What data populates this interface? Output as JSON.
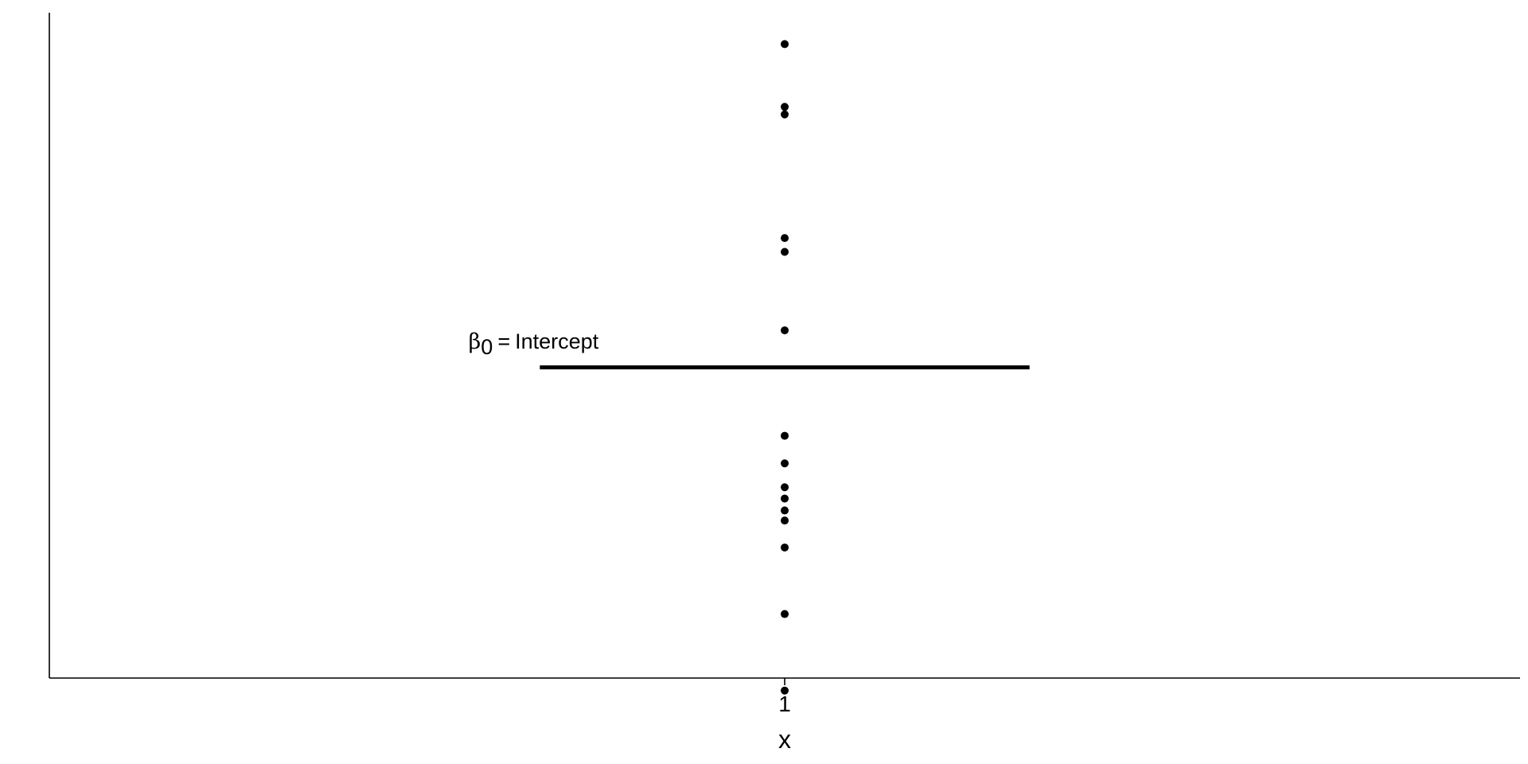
{
  "chart_data": {
    "type": "scatter",
    "title": "",
    "xlabel": "x",
    "ylabel": "",
    "x_ticks": [
      "1"
    ],
    "x_range": [
      0,
      2
    ],
    "y_range": [
      -4.7,
      5.9
    ],
    "grid": false,
    "legend": "none",
    "points": [
      {
        "x": 1,
        "y": 5.4
      },
      {
        "x": 1,
        "y": 4.4
      },
      {
        "x": 1,
        "y": 4.28
      },
      {
        "x": 1,
        "y": 2.31
      },
      {
        "x": 1,
        "y": 2.09
      },
      {
        "x": 1,
        "y": 0.84
      },
      {
        "x": 1,
        "y": -0.84
      },
      {
        "x": 1,
        "y": -1.28
      },
      {
        "x": 1,
        "y": -1.66
      },
      {
        "x": 1,
        "y": -1.84
      },
      {
        "x": 1,
        "y": -2.03
      },
      {
        "x": 1,
        "y": -2.19
      },
      {
        "x": 1,
        "y": -2.62
      },
      {
        "x": 1,
        "y": -3.68
      },
      {
        "x": 1,
        "y": -4.9
      }
    ],
    "hline": {
      "y": 0.25,
      "x_start": 0.667,
      "x_end": 1.333
    },
    "annotation": {
      "symbol": "β",
      "subscript": "0",
      "equals": "=",
      "text": "Intercept",
      "x": 0.57,
      "y": 0.55
    },
    "point_color": "#000000",
    "line_color": "#000000"
  }
}
